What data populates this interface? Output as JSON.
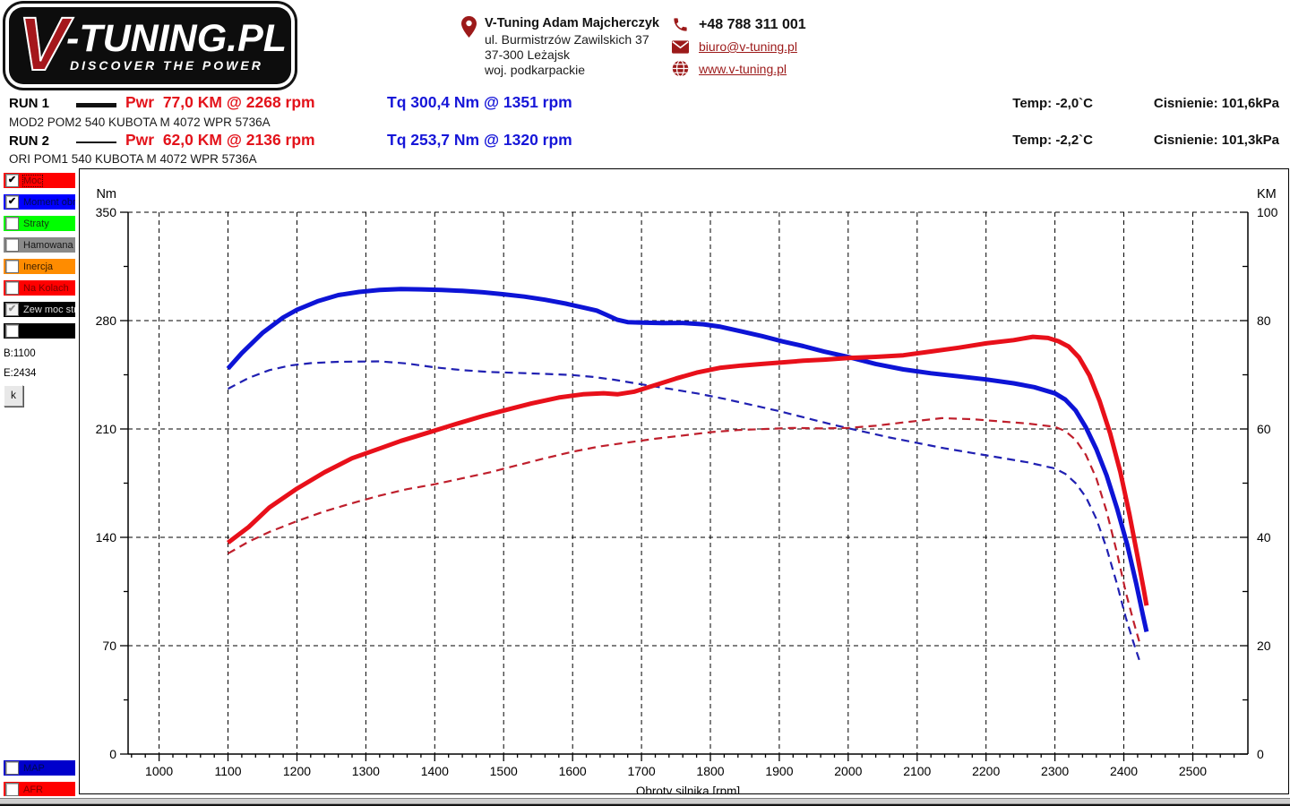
{
  "header": {
    "logo": {
      "v": "V",
      "rest": "-TUNING.PL",
      "tagline": "DISCOVER THE POWER"
    },
    "company": {
      "name": "V-Tuning Adam Majcherczyk",
      "address_line1": "ul. Burmistrzów Zawilskich 37",
      "address_line2": "37-300 Leżajsk",
      "address_line3": "woj. podkarpackie"
    },
    "contact": {
      "phone": "+48 788 311 001",
      "email": "biuro@v-tuning.pl",
      "website": "www.v-tuning.pl"
    },
    "accent_color": "#9c1a1a"
  },
  "runs": [
    {
      "label": "RUN 1",
      "power": "Pwr  77,0 KM @ 2268 rpm",
      "torque": "Tq 300,4 Nm @ 1351 rpm",
      "description": "MOD2 POM2 540 KUBOTA M 4072 WPR 5736A",
      "temp": "Temp: -2,0`C",
      "pressure": "Cisnienie: 101,6kPa"
    },
    {
      "label": "RUN 2",
      "power": "Pwr  62,0 KM @ 2136 rpm",
      "torque": "Tq 253,7 Nm @ 1320 rpm",
      "description": "ORI POM1 540 KUBOTA M 4072 WPR 5736A",
      "temp": "Temp: -2,2`C",
      "pressure": "Cisnienie: 101,3kPa"
    }
  ],
  "sidebar": {
    "toggles": [
      {
        "label": "Moc",
        "color": "#ff0000",
        "text_color": "#7b0000",
        "checked": true,
        "disabled": false
      },
      {
        "label": "Moment obr",
        "color": "#0000ff",
        "text_color": "#000a4d",
        "checked": true,
        "disabled": false
      },
      {
        "label": "Straty",
        "color": "#00ff00",
        "text_color": "#103a10",
        "checked": false,
        "disabled": false
      },
      {
        "label": "Hamowana",
        "color": "#8a8a8a",
        "text_color": "#161616",
        "checked": false,
        "disabled": false
      },
      {
        "label": "Inercja",
        "color": "#ff8c00",
        "text_color": "#3d2000",
        "checked": false,
        "disabled": false
      },
      {
        "label": "Na Kolach",
        "color": "#ff0000",
        "text_color": "#7b0000",
        "checked": false,
        "disabled": false
      },
      {
        "label": "Zew moc str",
        "color": "#000000",
        "text_color": "#dcdcdc",
        "checked": true,
        "disabled": true
      },
      {
        "label": "",
        "color": "#000000",
        "text_color": "#ffffff",
        "checked": false,
        "disabled": false
      }
    ],
    "range_begin": "B:1100",
    "range_end": "E:2434",
    "k_button": "k",
    "bottom_toggles": [
      {
        "label": "MAP",
        "color": "#0000cc",
        "text_color": "#000a4d",
        "checked": false,
        "disabled": false
      },
      {
        "label": "AFR",
        "color": "#ff0000",
        "text_color": "#7b0000",
        "checked": false,
        "disabled": false
      }
    ]
  },
  "chart_data": {
    "type": "line",
    "title": "",
    "xlabel": "Obroty silnika [rpm]",
    "grid": "dashed",
    "x": {
      "min": 1000,
      "max": 2500,
      "tick_step": 100,
      "minor_step": 20,
      "plot_min": 955,
      "plot_max": 2580
    },
    "y_left": {
      "label": "Nm",
      "min": 0,
      "max": 350,
      "tick_step": 70,
      "minor_step": 35
    },
    "y_right": {
      "label": "KM",
      "min": 0,
      "max": 100,
      "tick_step": 20,
      "minor_step": 10
    },
    "series": [
      {
        "name": "run2-torque",
        "run": "RUN 2",
        "unit": "Nm",
        "axis": "left",
        "color": "#2020b2",
        "style": "dashed",
        "width": 2.2,
        "peak": {
          "value": 253.7,
          "rpm": 1320
        },
        "points": [
          [
            1100,
            236
          ],
          [
            1130,
            243
          ],
          [
            1160,
            248
          ],
          [
            1190,
            251
          ],
          [
            1220,
            252.5
          ],
          [
            1260,
            253.4
          ],
          [
            1320,
            253.7
          ],
          [
            1360,
            252.3
          ],
          [
            1400,
            249.8
          ],
          [
            1440,
            248
          ],
          [
            1480,
            246.8
          ],
          [
            1520,
            246.2
          ],
          [
            1560,
            245.6
          ],
          [
            1600,
            244.8
          ],
          [
            1630,
            243.6
          ],
          [
            1660,
            241.8
          ],
          [
            1700,
            238.8
          ],
          [
            1740,
            236
          ],
          [
            1780,
            233
          ],
          [
            1820,
            229.5
          ],
          [
            1860,
            225.5
          ],
          [
            1900,
            221.5
          ],
          [
            1940,
            217
          ],
          [
            1980,
            212.5
          ],
          [
            2020,
            208.5
          ],
          [
            2060,
            204.5
          ],
          [
            2100,
            201
          ],
          [
            2140,
            197.5
          ],
          [
            2180,
            194.5
          ],
          [
            2220,
            191.5
          ],
          [
            2260,
            188.5
          ],
          [
            2300,
            184.5
          ],
          [
            2315,
            181
          ],
          [
            2330,
            175
          ],
          [
            2345,
            166
          ],
          [
            2360,
            152
          ],
          [
            2375,
            133
          ],
          [
            2390,
            110
          ],
          [
            2403,
            88
          ],
          [
            2414,
            72
          ],
          [
            2423,
            60
          ]
        ]
      },
      {
        "name": "run2-power",
        "run": "RUN 2",
        "unit": "KM",
        "axis": "right",
        "color": "#bf1f2c",
        "style": "dashed",
        "width": 2.2,
        "peak": {
          "value": 62.0,
          "rpm": 2136
        },
        "points": [
          [
            1100,
            37
          ],
          [
            1130,
            39.2
          ],
          [
            1160,
            41
          ],
          [
            1200,
            43
          ],
          [
            1240,
            44.8
          ],
          [
            1280,
            46.3
          ],
          [
            1320,
            47.7
          ],
          [
            1360,
            48.9
          ],
          [
            1400,
            49.8
          ],
          [
            1440,
            50.9
          ],
          [
            1480,
            52
          ],
          [
            1520,
            53.3
          ],
          [
            1560,
            54.6
          ],
          [
            1600,
            55.8
          ],
          [
            1640,
            56.8
          ],
          [
            1680,
            57.5
          ],
          [
            1720,
            58.2
          ],
          [
            1760,
            58.8
          ],
          [
            1800,
            59.4
          ],
          [
            1840,
            59.8
          ],
          [
            1880,
            60
          ],
          [
            1920,
            60.2
          ],
          [
            1960,
            60.1
          ],
          [
            2000,
            60.2
          ],
          [
            2040,
            60.6
          ],
          [
            2080,
            61.2
          ],
          [
            2136,
            62
          ],
          [
            2180,
            61.8
          ],
          [
            2220,
            61.4
          ],
          [
            2260,
            61
          ],
          [
            2300,
            60.4
          ],
          [
            2315,
            59.6
          ],
          [
            2330,
            58
          ],
          [
            2345,
            55.2
          ],
          [
            2360,
            50.9
          ],
          [
            2375,
            44.8
          ],
          [
            2390,
            37.2
          ],
          [
            2403,
            29.8
          ],
          [
            2414,
            24.5
          ],
          [
            2423,
            20.5
          ]
        ]
      },
      {
        "name": "run1-torque",
        "run": "RUN 1",
        "unit": "Nm",
        "axis": "left",
        "color": "#0d14d6",
        "style": "solid",
        "width": 5,
        "peak": {
          "value": 300.4,
          "rpm": 1351
        },
        "points": [
          [
            1100,
            249
          ],
          [
            1120,
            259
          ],
          [
            1150,
            272
          ],
          [
            1180,
            282
          ],
          [
            1200,
            287
          ],
          [
            1230,
            292.5
          ],
          [
            1260,
            296.5
          ],
          [
            1290,
            298.5
          ],
          [
            1320,
            299.8
          ],
          [
            1351,
            300.4
          ],
          [
            1380,
            300.2
          ],
          [
            1410,
            299.8
          ],
          [
            1440,
            299.2
          ],
          [
            1470,
            298.3
          ],
          [
            1500,
            297
          ],
          [
            1530,
            295.5
          ],
          [
            1560,
            293.5
          ],
          [
            1590,
            291
          ],
          [
            1615,
            288.5
          ],
          [
            1635,
            286.5
          ],
          [
            1650,
            283.5
          ],
          [
            1665,
            280.5
          ],
          [
            1680,
            279
          ],
          [
            1700,
            278.7
          ],
          [
            1730,
            278.4
          ],
          [
            1760,
            278.5
          ],
          [
            1790,
            277.6
          ],
          [
            1815,
            276
          ],
          [
            1845,
            273
          ],
          [
            1875,
            270
          ],
          [
            1905,
            266.5
          ],
          [
            1935,
            263.5
          ],
          [
            1965,
            260
          ],
          [
            2000,
            256.5
          ],
          [
            2040,
            252
          ],
          [
            2080,
            248.5
          ],
          [
            2120,
            246
          ],
          [
            2160,
            244
          ],
          [
            2200,
            242
          ],
          [
            2240,
            239.5
          ],
          [
            2270,
            237
          ],
          [
            2300,
            233
          ],
          [
            2315,
            229
          ],
          [
            2330,
            222
          ],
          [
            2345,
            211
          ],
          [
            2360,
            197
          ],
          [
            2375,
            180
          ],
          [
            2390,
            159
          ],
          [
            2405,
            135
          ],
          [
            2418,
            110
          ],
          [
            2428,
            89
          ],
          [
            2433,
            79
          ]
        ]
      },
      {
        "name": "run1-power",
        "run": "RUN 1",
        "unit": "KM",
        "axis": "right",
        "color": "#e8101a",
        "style": "solid",
        "width": 5,
        "peak": {
          "value": 77.0,
          "rpm": 2268
        },
        "points": [
          [
            1100,
            39
          ],
          [
            1130,
            41.9
          ],
          [
            1160,
            45.5
          ],
          [
            1200,
            49
          ],
          [
            1240,
            52
          ],
          [
            1280,
            54.6
          ],
          [
            1320,
            56.4
          ],
          [
            1351,
            57.8
          ],
          [
            1390,
            59.3
          ],
          [
            1430,
            60.9
          ],
          [
            1470,
            62.4
          ],
          [
            1500,
            63.4
          ],
          [
            1540,
            64.7
          ],
          [
            1580,
            65.8
          ],
          [
            1615,
            66.4
          ],
          [
            1645,
            66.6
          ],
          [
            1665,
            66.4
          ],
          [
            1690,
            66.9
          ],
          [
            1720,
            68.1
          ],
          [
            1750,
            69.3
          ],
          [
            1780,
            70.4
          ],
          [
            1815,
            71.3
          ],
          [
            1845,
            71.7
          ],
          [
            1875,
            72
          ],
          [
            1905,
            72.3
          ],
          [
            1935,
            72.6
          ],
          [
            1965,
            72.8
          ],
          [
            2000,
            73.1
          ],
          [
            2040,
            73.3
          ],
          [
            2080,
            73.6
          ],
          [
            2120,
            74.3
          ],
          [
            2160,
            75
          ],
          [
            2200,
            75.8
          ],
          [
            2240,
            76.4
          ],
          [
            2268,
            77
          ],
          [
            2290,
            76.8
          ],
          [
            2305,
            76.2
          ],
          [
            2320,
            75.2
          ],
          [
            2335,
            73.2
          ],
          [
            2350,
            69.9
          ],
          [
            2365,
            65.1
          ],
          [
            2380,
            59.2
          ],
          [
            2395,
            52
          ],
          [
            2408,
            44.3
          ],
          [
            2420,
            36.4
          ],
          [
            2429,
            30.3
          ],
          [
            2433,
            27.4
          ]
        ]
      }
    ]
  }
}
